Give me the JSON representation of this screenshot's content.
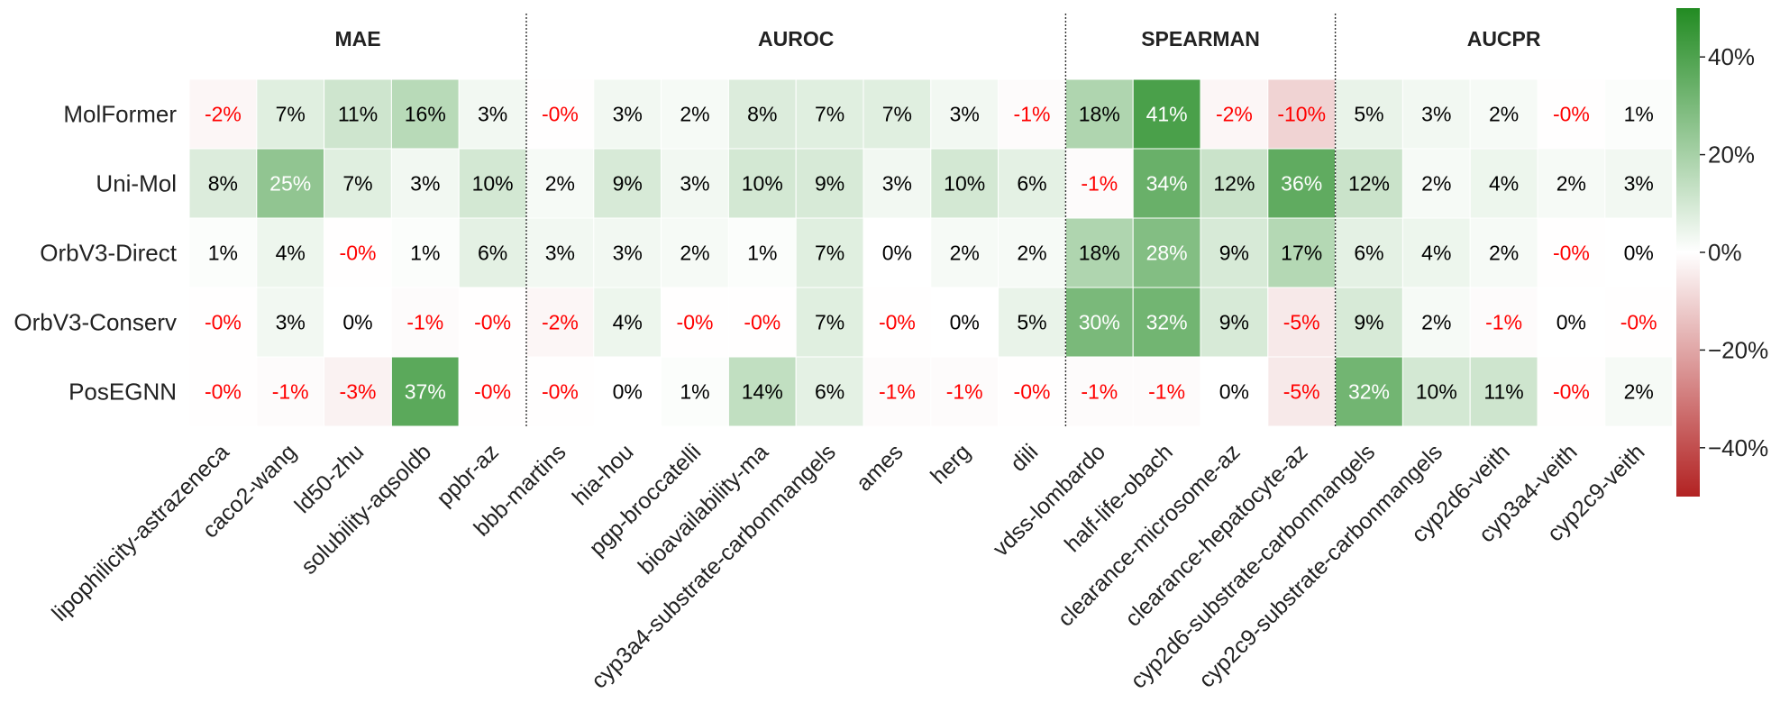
{
  "chart_data": {
    "type": "heatmap",
    "title": "",
    "groups": [
      {
        "name": "MAE",
        "columns": [
          "lipophilicity-astrazeneca",
          "caco2-wang",
          "ld50-zhu",
          "solubility-aqsoldb",
          "ppbr-az"
        ]
      },
      {
        "name": "AUROC",
        "columns": [
          "bbb-martins",
          "hia-hou",
          "pgp-broccatelli",
          "bioavailability-ma",
          "cyp3a4-substrate-carbonmangels",
          "ames",
          "herg",
          "dili"
        ]
      },
      {
        "name": "SPEARMAN",
        "columns": [
          "vdss-lombardo",
          "half-life-obach",
          "clearance-microsome-az",
          "clearance-hepatocyte-az"
        ]
      },
      {
        "name": "AUCPR",
        "columns": [
          "cyp2d6-substrate-carbonmangels",
          "cyp2c9-substrate-carbonmangels",
          "cyp2d6-veith",
          "cyp3a4-veith",
          "cyp2c9-veith"
        ]
      }
    ],
    "columns": [
      "lipophilicity-astrazeneca",
      "caco2-wang",
      "ld50-zhu",
      "solubility-aqsoldb",
      "ppbr-az",
      "bbb-martins",
      "hia-hou",
      "pgp-broccatelli",
      "bioavailability-ma",
      "cyp3a4-substrate-carbonmangels",
      "ames",
      "herg",
      "dili",
      "vdss-lombardo",
      "half-life-obach",
      "clearance-microsome-az",
      "clearance-hepatocyte-az",
      "cyp2d6-substrate-carbonmangels",
      "cyp2c9-substrate-carbonmangels",
      "cyp2d6-veith",
      "cyp3a4-veith",
      "cyp2c9-veith"
    ],
    "rows": [
      "MolFormer",
      "Uni-Mol",
      "OrbV3-Direct",
      "OrbV3-Conserv",
      "PosEGNN"
    ],
    "values": [
      [
        -2,
        7,
        11,
        16,
        3,
        -0.3,
        3,
        2,
        8,
        7,
        7,
        3,
        -1,
        18,
        41,
        -2,
        -10,
        5,
        3,
        2,
        -0.3,
        1
      ],
      [
        8,
        25,
        7,
        3,
        10,
        2,
        9,
        3,
        10,
        9,
        3,
        10,
        6,
        -1,
        34,
        12,
        36,
        12,
        2,
        4,
        2,
        3
      ],
      [
        1,
        4,
        -0.3,
        1,
        6,
        3,
        3,
        2,
        1,
        7,
        0,
        2,
        2,
        18,
        28,
        9,
        17,
        6,
        4,
        2,
        -0.3,
        0
      ],
      [
        -0.3,
        3,
        0,
        -1,
        -0.3,
        -2,
        4,
        -0.3,
        -0.3,
        7,
        -0.3,
        0,
        5,
        30,
        32,
        9,
        -5,
        9,
        2,
        -1,
        0,
        -0.3
      ],
      [
        -0.3,
        -1,
        -3,
        37,
        -0.3,
        -0.3,
        0,
        1,
        14,
        6,
        -1,
        -1,
        -0.3,
        -1,
        -1,
        0,
        -5,
        32,
        10,
        11,
        -0.3,
        2
      ]
    ],
    "labels": [
      [
        "-2%",
        "7%",
        "11%",
        "16%",
        "3%",
        "-0%",
        "3%",
        "2%",
        "8%",
        "7%",
        "7%",
        "3%",
        "-1%",
        "18%",
        "41%",
        "-2%",
        "-10%",
        "5%",
        "3%",
        "2%",
        "-0%",
        "1%"
      ],
      [
        "8%",
        "25%",
        "7%",
        "3%",
        "10%",
        "2%",
        "9%",
        "3%",
        "10%",
        "9%",
        "3%",
        "10%",
        "6%",
        "-1%",
        "34%",
        "12%",
        "36%",
        "12%",
        "2%",
        "4%",
        "2%",
        "3%"
      ],
      [
        "1%",
        "4%",
        "-0%",
        "1%",
        "6%",
        "3%",
        "3%",
        "2%",
        "1%",
        "7%",
        "0%",
        "2%",
        "2%",
        "18%",
        "28%",
        "9%",
        "17%",
        "6%",
        "4%",
        "2%",
        "-0%",
        "0%"
      ],
      [
        "-0%",
        "3%",
        "0%",
        "-1%",
        "-0%",
        "-2%",
        "4%",
        "-0%",
        "-0%",
        "7%",
        "-0%",
        "0%",
        "5%",
        "30%",
        "32%",
        "9%",
        "-5%",
        "9%",
        "2%",
        "-1%",
        "0%",
        "-0%"
      ],
      [
        "-0%",
        "-1%",
        "-3%",
        "37%",
        "-0%",
        "-0%",
        "0%",
        "1%",
        "14%",
        "6%",
        "-1%",
        "-1%",
        "-0%",
        "-1%",
        "-1%",
        "0%",
        "-5%",
        "32%",
        "10%",
        "11%",
        "-0%",
        "2%"
      ]
    ],
    "colorbar": {
      "min": -50,
      "max": 50,
      "ticks": [
        40,
        20,
        0,
        -20,
        -40
      ],
      "tick_labels": [
        "40%",
        "20%",
        "0%",
        "−20%",
        "−40%"
      ],
      "colors": {
        "negative": "#b22222",
        "zero": "#ffffff",
        "positive": "#228b22"
      }
    },
    "label_colors": {
      "negative": "#ff0000",
      "dark_bg": "#ffffff",
      "light_bg": "#000000"
    }
  }
}
